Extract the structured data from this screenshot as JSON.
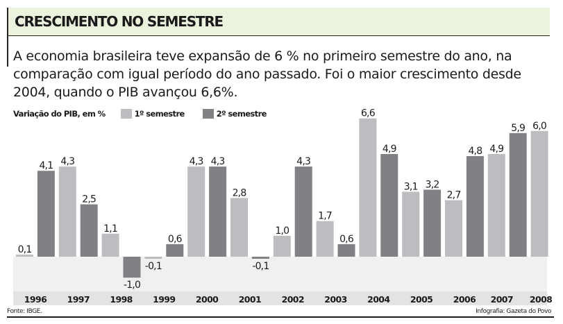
{
  "header": {
    "title": "CRESCIMENTO NO SEMESTRE",
    "lead": "A economia brasileira teve expansão de 6 % no primeiro semestre do ano, na comparação com igual período do ano passado. Foi o maior crescimento desde 2004, quando o PIB avançou 6,6%."
  },
  "legend": {
    "axis_label": "Variação do PIB, em %",
    "items": [
      {
        "label": "1º semestre",
        "color": "#bcbdc0"
      },
      {
        "label": "2º semestre",
        "color": "#808184"
      }
    ]
  },
  "footer": {
    "source": "Fonte: IBGE.",
    "credit": "Infografia: Gazeta do Povo"
  },
  "colors": {
    "header_bg": "#ebf2de",
    "first_semester": "#bcbdc0",
    "second_semester": "#808184",
    "plot_bg": "#f0f0f0",
    "year_band": "#e3e3e4"
  },
  "chart_data": {
    "type": "bar",
    "title": "CRESCIMENTO NO SEMESTRE",
    "ylabel": "Variação do PIB, em %",
    "xlabel": "",
    "ylim": [
      -1.5,
      6.6
    ],
    "grid": false,
    "legend_position": "top-left",
    "categories": [
      "1996",
      "1997",
      "1998",
      "1999",
      "2000",
      "2001",
      "2002",
      "2003",
      "2004",
      "2005",
      "2006",
      "2007",
      "2008"
    ],
    "sequence": [
      {
        "year": "1996",
        "semester": 1,
        "value": 0.1,
        "label": "0,1"
      },
      {
        "year": "1996",
        "semester": 2,
        "value": 4.1,
        "label": "4,1"
      },
      {
        "year": "1997",
        "semester": 1,
        "value": 4.3,
        "label": "4,3"
      },
      {
        "year": "1997",
        "semester": 2,
        "value": 2.5,
        "label": "2,5"
      },
      {
        "year": "1998",
        "semester": 1,
        "value": 1.1,
        "label": "1,1"
      },
      {
        "year": "1998",
        "semester": 2,
        "value": -1.0,
        "label": "-1,0"
      },
      {
        "year": "1999",
        "semester": 1,
        "value": -0.1,
        "label": "-0,1"
      },
      {
        "year": "1999",
        "semester": 2,
        "value": 0.6,
        "label": "0,6"
      },
      {
        "year": "2000",
        "semester": 1,
        "value": 4.3,
        "label": "4,3"
      },
      {
        "year": "2000",
        "semester": 2,
        "value": 4.3,
        "label": "4,3"
      },
      {
        "year": "2001",
        "semester": 1,
        "value": 2.8,
        "label": "2,8"
      },
      {
        "year": "2001",
        "semester": 2,
        "value": -0.1,
        "label": "-0,1"
      },
      {
        "year": "2002",
        "semester": 1,
        "value": 1.0,
        "label": "1,0"
      },
      {
        "year": "2002",
        "semester": 2,
        "value": 4.3,
        "label": "4,3"
      },
      {
        "year": "2003",
        "semester": 1,
        "value": 1.7,
        "label": "1,7"
      },
      {
        "year": "2003",
        "semester": 2,
        "value": 0.6,
        "label": "0,6"
      },
      {
        "year": "2004",
        "semester": 1,
        "value": 6.6,
        "label": "6,6"
      },
      {
        "year": "2004",
        "semester": 2,
        "value": 4.9,
        "label": "4,9"
      },
      {
        "year": "2005",
        "semester": 1,
        "value": 3.1,
        "label": "3,1"
      },
      {
        "year": "2005",
        "semester": 2,
        "value": 3.2,
        "label": "3,2"
      },
      {
        "year": "2006",
        "semester": 1,
        "value": 2.7,
        "label": "2,7"
      },
      {
        "year": "2006",
        "semester": 2,
        "value": 4.8,
        "label": "4,8"
      },
      {
        "year": "2007",
        "semester": 1,
        "value": 4.9,
        "label": "4,9"
      },
      {
        "year": "2007",
        "semester": 2,
        "value": 5.9,
        "label": "5,9"
      },
      {
        "year": "2008",
        "semester": 1,
        "value": 6.0,
        "label": "6,0"
      }
    ],
    "series": [
      {
        "name": "1º semestre",
        "values": [
          0.1,
          4.3,
          1.1,
          -0.1,
          4.3,
          2.8,
          1.0,
          1.7,
          6.6,
          3.1,
          2.7,
          4.9,
          6.0
        ]
      },
      {
        "name": "2º semestre",
        "values": [
          4.1,
          2.5,
          -1.0,
          0.6,
          4.3,
          -0.1,
          4.3,
          0.6,
          4.9,
          3.2,
          4.8,
          5.9,
          null
        ]
      }
    ]
  }
}
